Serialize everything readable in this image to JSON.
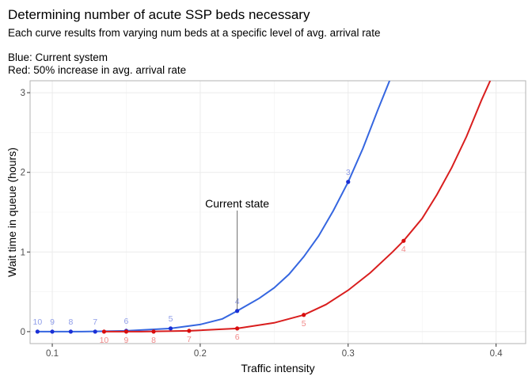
{
  "chart_data": {
    "type": "line",
    "title": "Determining number of acute SSP beds necessary",
    "subtitle_lines": [
      "Each curve results from varying num beds at a specific level of avg. arrival rate",
      "",
      "Blue: Current system",
      "Red: 50% increase in avg. arrival rate"
    ],
    "xlabel": "Traffic intensity",
    "ylabel": "Wait time in queue (hours)",
    "xlim": [
      0.085,
      0.42
    ],
    "ylim": [
      -0.15,
      3.15
    ],
    "x_ticks": [
      0.1,
      0.2,
      0.3,
      0.4
    ],
    "x_tick_labels": [
      "0.1",
      "0.2",
      "0.3",
      "0.4"
    ],
    "y_ticks": [
      0,
      1,
      2,
      3
    ],
    "y_tick_labels": [
      "0",
      "1",
      "2",
      "3"
    ],
    "grid": true,
    "series": [
      {
        "color": "#1a2fd6",
        "line_color": "#3566e0",
        "label_color": "#8f9de8",
        "points": [
          {
            "x": 0.09,
            "y": 0.0,
            "label": "10"
          },
          {
            "x": 0.1,
            "y": 0.0,
            "label": "9"
          },
          {
            "x": 0.1125,
            "y": 0.0,
            "label": "8"
          },
          {
            "x": 0.129,
            "y": 0.0,
            "label": "7"
          },
          {
            "x": 0.15,
            "y": 0.01,
            "label": "6"
          },
          {
            "x": 0.18,
            "y": 0.04,
            "label": "5"
          },
          {
            "x": 0.225,
            "y": 0.26,
            "label": "4"
          },
          {
            "x": 0.3,
            "y": 1.88,
            "label": "3"
          }
        ],
        "curve": [
          [
            0.09,
            0.0
          ],
          [
            0.12,
            0.0
          ],
          [
            0.15,
            0.01
          ],
          [
            0.18,
            0.04
          ],
          [
            0.2,
            0.09
          ],
          [
            0.215,
            0.16
          ],
          [
            0.225,
            0.26
          ],
          [
            0.24,
            0.42
          ],
          [
            0.25,
            0.55
          ],
          [
            0.26,
            0.72
          ],
          [
            0.27,
            0.94
          ],
          [
            0.28,
            1.2
          ],
          [
            0.29,
            1.52
          ],
          [
            0.3,
            1.88
          ],
          [
            0.31,
            2.3
          ],
          [
            0.32,
            2.78
          ],
          [
            0.328,
            3.15
          ]
        ]
      },
      {
        "color": "#d90d0d",
        "line_color": "#d91e1e",
        "label_color": "#f08a8a",
        "points": [
          {
            "x": 0.135,
            "y": 0.0,
            "label": "10"
          },
          {
            "x": 0.15,
            "y": 0.0,
            "label": "9"
          },
          {
            "x": 0.1685,
            "y": 0.0,
            "label": "8"
          },
          {
            "x": 0.1925,
            "y": 0.01,
            "label": "7"
          },
          {
            "x": 0.225,
            "y": 0.04,
            "label": "6"
          },
          {
            "x": 0.27,
            "y": 0.21,
            "label": "5"
          },
          {
            "x": 0.3375,
            "y": 1.14,
            "label": "4"
          }
        ],
        "curve": [
          [
            0.135,
            0.0
          ],
          [
            0.16,
            0.0
          ],
          [
            0.1925,
            0.01
          ],
          [
            0.225,
            0.04
          ],
          [
            0.25,
            0.11
          ],
          [
            0.27,
            0.21
          ],
          [
            0.285,
            0.34
          ],
          [
            0.3,
            0.52
          ],
          [
            0.315,
            0.74
          ],
          [
            0.33,
            1.0
          ],
          [
            0.3375,
            1.14
          ],
          [
            0.35,
            1.42
          ],
          [
            0.36,
            1.72
          ],
          [
            0.37,
            2.06
          ],
          [
            0.38,
            2.45
          ],
          [
            0.39,
            2.9
          ],
          [
            0.396,
            3.15
          ]
        ]
      }
    ],
    "annotation": {
      "text": "Current state",
      "x": 0.225,
      "y_text": 1.6,
      "y_end": 0.28
    }
  }
}
